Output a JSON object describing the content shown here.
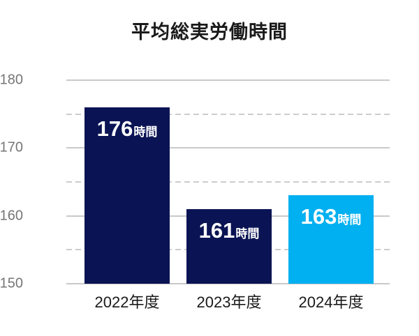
{
  "page": {
    "background": "#ffffff"
  },
  "chart_data": {
    "type": "bar",
    "title": "平均総実労働時間",
    "categories": [
      "2022年度",
      "2023年度",
      "2024年度"
    ],
    "values": [
      176,
      161,
      163
    ],
    "value_unit": "時間",
    "bar_value_labels": [
      "176時間",
      "161時間",
      "163時間"
    ],
    "bar_colors": [
      "#0a1454",
      "#0a1454",
      "#00b0f0"
    ],
    "xlabel": "",
    "ylabel": "",
    "ylim": [
      150,
      180
    ],
    "yticks": [
      150,
      160,
      170,
      180
    ],
    "minor_yticks": [
      155,
      165,
      175
    ],
    "grid": {
      "major_style": "solid",
      "minor_style": "dashed",
      "color": "#c9c9c9",
      "vertical": false
    },
    "legend": "none",
    "colors": {
      "title_text": "#1a1a1a",
      "axis_tick_text": "#767676",
      "category_text": "#1a1a1a",
      "bar_label_text": "#ffffff",
      "navy": "#0a1454",
      "light_blue": "#00b0f0"
    }
  }
}
